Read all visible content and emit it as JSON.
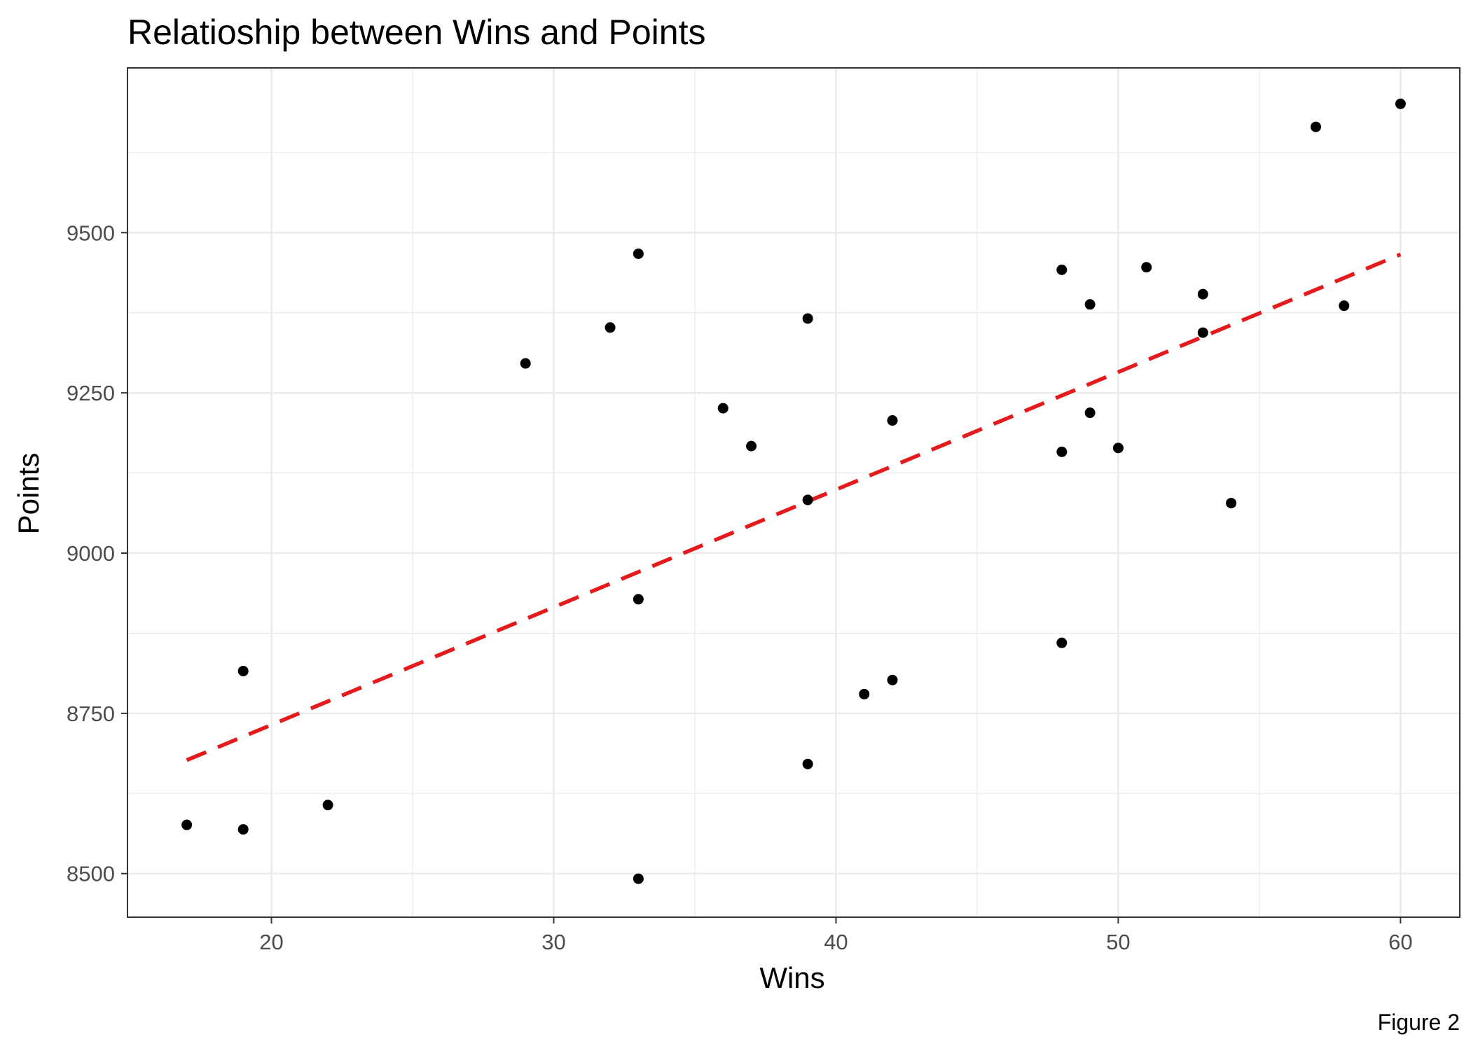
{
  "chart_data": {
    "type": "scatter",
    "title": "Relatioship between Wins and Points",
    "xlabel": "Wins",
    "ylabel": "Points",
    "caption": "Figure 2",
    "xlim": [
      14.9,
      62.1
    ],
    "ylim": [
      8432,
      9757
    ],
    "x_ticks": [
      20,
      30,
      40,
      50,
      60
    ],
    "y_ticks": [
      8500,
      8750,
      9000,
      9250,
      9500
    ],
    "x_minor_grid": [
      25,
      35,
      45,
      55
    ],
    "y_minor_grid": [
      8625,
      8875,
      9125,
      9375,
      9625
    ],
    "grid": true,
    "colors": {
      "points": "#000000",
      "trend_line": "#e41a1c",
      "grid": "#ebebeb",
      "panel_border": "#333333"
    },
    "points": [
      {
        "x": 17,
        "y": 8576
      },
      {
        "x": 19,
        "y": 8816
      },
      {
        "x": 19,
        "y": 8569
      },
      {
        "x": 22,
        "y": 8607
      },
      {
        "x": 29,
        "y": 9296
      },
      {
        "x": 32,
        "y": 9352
      },
      {
        "x": 33,
        "y": 9467
      },
      {
        "x": 33,
        "y": 8928
      },
      {
        "x": 33,
        "y": 8492
      },
      {
        "x": 36,
        "y": 9226
      },
      {
        "x": 37,
        "y": 9167
      },
      {
        "x": 39,
        "y": 9366
      },
      {
        "x": 39,
        "y": 9083
      },
      {
        "x": 39,
        "y": 8671
      },
      {
        "x": 41,
        "y": 8780
      },
      {
        "x": 42,
        "y": 9207
      },
      {
        "x": 42,
        "y": 8802
      },
      {
        "x": 48,
        "y": 9442
      },
      {
        "x": 48,
        "y": 9158
      },
      {
        "x": 48,
        "y": 8860
      },
      {
        "x": 49,
        "y": 9388
      },
      {
        "x": 49,
        "y": 9219
      },
      {
        "x": 50,
        "y": 9164
      },
      {
        "x": 51,
        "y": 9446
      },
      {
        "x": 53,
        "y": 9404
      },
      {
        "x": 53,
        "y": 9344
      },
      {
        "x": 54,
        "y": 9078
      },
      {
        "x": 57,
        "y": 9665
      },
      {
        "x": 58,
        "y": 9386
      },
      {
        "x": 60,
        "y": 9701
      }
    ],
    "trend_line": {
      "style": "dashed",
      "x": [
        17,
        60
      ],
      "y": [
        8677,
        9466
      ]
    }
  }
}
